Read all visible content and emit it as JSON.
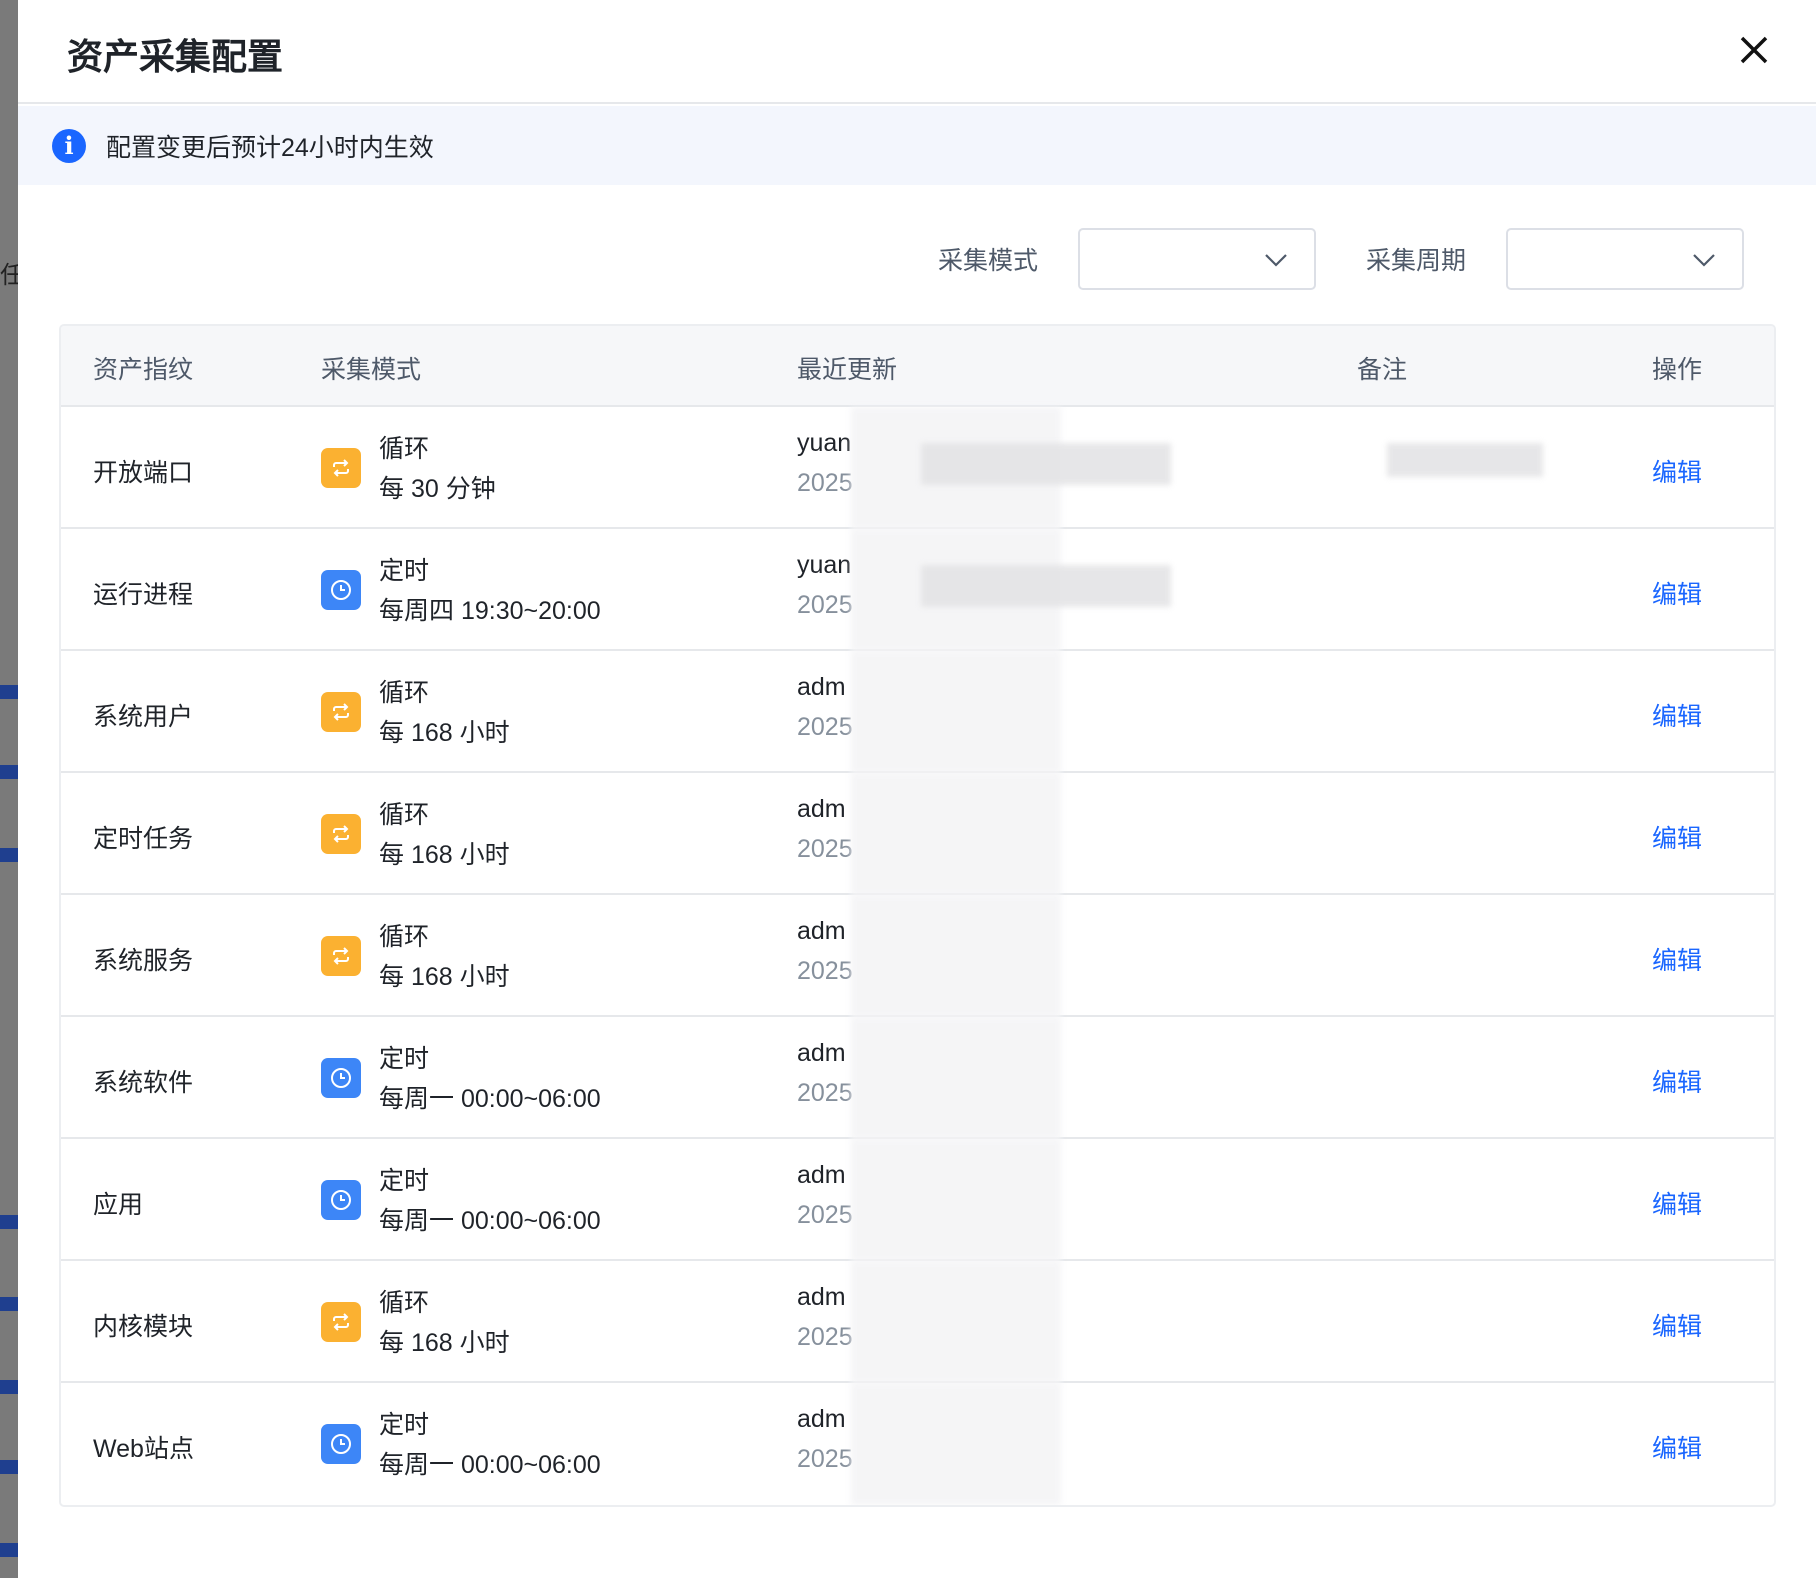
{
  "dialog": {
    "title": "资产采集配置",
    "close_icon": "close-icon"
  },
  "info": {
    "text": "配置变更后预计24小时内生效",
    "icon": "info-icon",
    "color": "#1a66ff"
  },
  "filters": {
    "mode_label": "采集模式",
    "mode_value": "",
    "period_label": "采集周期",
    "period_value": ""
  },
  "table": {
    "headers": [
      "资产指纹",
      "采集模式",
      "最近更新",
      "备注",
      "操作"
    ],
    "rows": [
      {
        "asset": "开放端口",
        "mode": "循环",
        "schedule": "每 30 分钟",
        "user": "yuan",
        "date": "2025",
        "action": "编辑",
        "icon": "repeat"
      },
      {
        "asset": "运行进程",
        "mode": "定时",
        "schedule": "每周四 19:30~20:00",
        "user": "yuan",
        "date": "2025",
        "action": "编辑",
        "icon": "clock"
      },
      {
        "asset": "系统用户",
        "mode": "循环",
        "schedule": "每 168 小时",
        "user": "adm",
        "date": "2025",
        "action": "编辑",
        "icon": "repeat"
      },
      {
        "asset": "定时任务",
        "mode": "循环",
        "schedule": "每 168 小时",
        "user": "adm",
        "date": "2025",
        "action": "编辑",
        "icon": "repeat"
      },
      {
        "asset": "系统服务",
        "mode": "循环",
        "schedule": "每 168 小时",
        "user": "adm",
        "date": "2025",
        "action": "编辑",
        "icon": "repeat"
      },
      {
        "asset": "系统软件",
        "mode": "定时",
        "schedule": "每周一 00:00~06:00",
        "user": "adm",
        "date": "2025",
        "action": "编辑",
        "icon": "clock"
      },
      {
        "asset": "应用",
        "mode": "定时",
        "schedule": "每周一 00:00~06:00",
        "user": "adm",
        "date": "2025",
        "action": "编辑",
        "icon": "clock"
      },
      {
        "asset": "内核模块",
        "mode": "循环",
        "schedule": "每 168 小时",
        "user": "adm",
        "date": "2025",
        "action": "编辑",
        "icon": "repeat"
      },
      {
        "asset": "Web站点",
        "mode": "定时",
        "schedule": "每周一 00:00~06:00",
        "user": "adm",
        "date": "2025",
        "action": "编辑",
        "icon": "clock"
      }
    ]
  },
  "colors": {
    "repeat": "#fbb131",
    "clock": "#3d86f7",
    "link": "#1a66ff"
  }
}
